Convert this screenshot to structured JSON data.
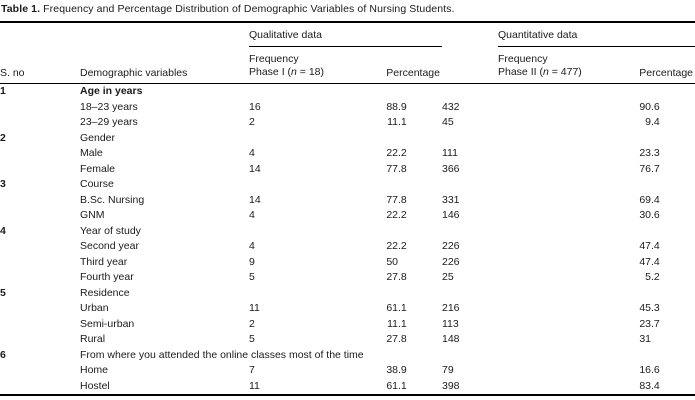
{
  "page": {
    "background": "#ffffff",
    "text_color": "#1b1b1b",
    "rule_color": "#000000"
  },
  "title": {
    "label": "Table 1.",
    "text": " Frequency and Percentage Distribution of Demographic Variables of Nursing Students."
  },
  "table": {
    "groups": {
      "qualitative": "Qualitative data",
      "quantitative": "Quantitative data"
    },
    "headers": {
      "sno": "S. no",
      "variable": "Demographic variables",
      "freq1_line1": "Frequency",
      "freq1_pre": "Phase I (",
      "freq1_n": "n",
      "freq1_post": " = 18)",
      "pct1": "Percentage",
      "freq2_line1": "Frequency",
      "freq2_pre": "Phase II (",
      "freq2_n": "n",
      "freq2_post": " = 477)",
      "pct2": "Percentage"
    },
    "rows": [
      {
        "sno": "1",
        "variable": "Age in years",
        "bold": true,
        "freq1": "",
        "pct1": "",
        "freq2": "",
        "pct2": ""
      },
      {
        "sno": "",
        "variable": "18–23 years",
        "freq1": "16",
        "pct1": "88.9",
        "freq2": "432",
        "pct2": "90.6"
      },
      {
        "sno": "",
        "variable": "23–29 years",
        "freq1": "2",
        "pct1": "11.1",
        "freq2": "45",
        "pct2": "9.4"
      },
      {
        "sno": "2",
        "variable": "Gender",
        "freq1": "",
        "pct1": "",
        "freq2": "",
        "pct2": ""
      },
      {
        "sno": "",
        "variable": "Male",
        "freq1": "4",
        "pct1": "22.2",
        "freq2": "111",
        "pct2": "23.3"
      },
      {
        "sno": "",
        "variable": "Female",
        "freq1": "14",
        "pct1": "77.8",
        "freq2": "366",
        "pct2": "76.7"
      },
      {
        "sno": "3",
        "variable": "Course",
        "freq1": "",
        "pct1": "",
        "freq2": "",
        "pct2": ""
      },
      {
        "sno": "",
        "variable": "B.Sc. Nursing",
        "freq1": "14",
        "pct1": "77.8",
        "freq2": "331",
        "pct2": "69.4"
      },
      {
        "sno": "",
        "variable": "GNM",
        "freq1": "4",
        "pct1": "22.2",
        "freq2": "146",
        "pct2": "30.6"
      },
      {
        "sno": "4",
        "variable": "Year of study",
        "freq1": "",
        "pct1": "",
        "freq2": "",
        "pct2": ""
      },
      {
        "sno": "",
        "variable": "Second year",
        "freq1": "4",
        "pct1": "22.2",
        "freq2": "226",
        "pct2": "47.4"
      },
      {
        "sno": "",
        "variable": "Third year",
        "freq1": "9",
        "pct1": "50",
        "freq2": "226",
        "pct2": "47.4"
      },
      {
        "sno": "",
        "variable": "Fourth year",
        "freq1": "5",
        "pct1": "27.8",
        "freq2": "25",
        "pct2": "5.2"
      },
      {
        "sno": "5",
        "variable": "Residence",
        "freq1": "",
        "pct1": "",
        "freq2": "",
        "pct2": ""
      },
      {
        "sno": "",
        "variable": "Urban",
        "freq1": "11",
        "pct1": "61.1",
        "freq2": "216",
        "pct2": "45.3"
      },
      {
        "sno": "",
        "variable": "Semi-urban",
        "freq1": "2",
        "pct1": "11.1",
        "freq2": "113",
        "pct2": "23.7"
      },
      {
        "sno": "",
        "variable": "Rural",
        "freq1": "5",
        "pct1": "27.8",
        "freq2": "148",
        "pct2": "31"
      },
      {
        "sno": "6",
        "variable": "From where you attended the online classes most of the time",
        "freq1": "",
        "pct1": "",
        "freq2": "",
        "pct2": ""
      },
      {
        "sno": "",
        "variable": "Home",
        "freq1": "7",
        "pct1": "38.9",
        "freq2": "79",
        "pct2": "16.6"
      },
      {
        "sno": "",
        "variable": "Hostel",
        "freq1": "11",
        "pct1": "61.1",
        "freq2": "398",
        "pct2": "83.4"
      }
    ]
  }
}
